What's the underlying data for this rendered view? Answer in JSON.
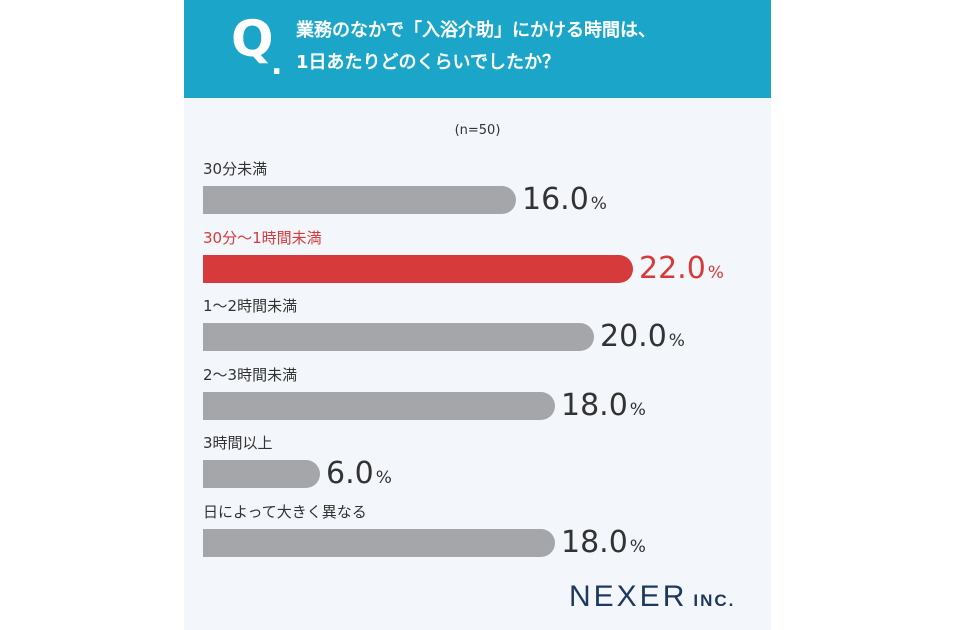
{
  "header": {
    "q_letter": "Q",
    "q_dot": ".",
    "question_line1": "業務のなかで「入浴介助」にかける時間は、",
    "question_line2": "1日あたりどのくらいでしたか？",
    "background": "#1ba6c9"
  },
  "chart_data": {
    "type": "bar",
    "orientation": "horizontal",
    "sample_note": "(n=50)",
    "unit": "%",
    "categories": [
      "30分未満",
      "30分〜1時間未満",
      "1〜2時間未満",
      "2〜3時間未満",
      "3時間以上",
      "日によって大きく異なる"
    ],
    "values": [
      16.0,
      22.0,
      20.0,
      18.0,
      6.0,
      18.0
    ],
    "value_labels": [
      "16.0",
      "22.0",
      "20.0",
      "18.0",
      "6.0",
      "18.0"
    ],
    "highlight_index": 1,
    "colors": {
      "default": "#a4a6aa",
      "highlight": "#d63a3a"
    },
    "xlim": [
      0,
      22
    ]
  },
  "logo": {
    "main": "NEXER",
    "sub": "INC."
  }
}
